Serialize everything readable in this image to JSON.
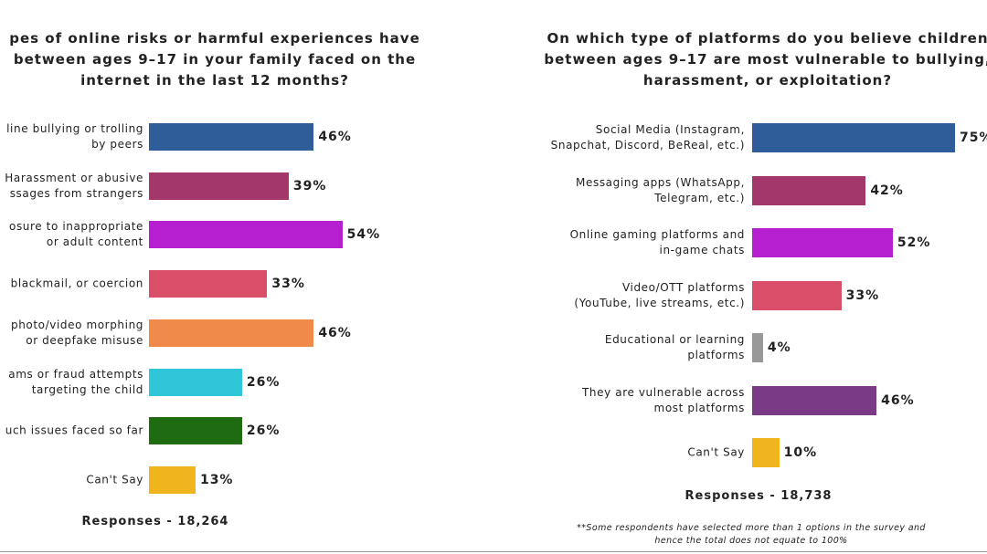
{
  "chart_data": [
    {
      "type": "bar",
      "orientation": "horizontal",
      "title": "pes of online risks or harmful experiences have\nbetween ages 9–17 in your family faced on the\ninternet in the last 12 months?",
      "categories": [
        "line bullying or trolling\nby peers",
        "Harassment or abusive\nssages from strangers",
        "osure to inappropriate\nor adult content",
        "blackmail, or coercion",
        "photo/video morphing\nor deepfake misuse",
        "ams or fraud attempts\ntargeting the child",
        "uch issues faced so far",
        "Can't Say"
      ],
      "values": [
        46,
        39,
        54,
        33,
        46,
        26,
        26,
        13
      ],
      "value_labels": [
        "46%",
        "39%",
        "54%",
        "33%",
        "46%",
        "26%",
        "26%",
        "13%"
      ],
      "colors": [
        "#2f5d9a",
        "#a3376b",
        "#b61fcf",
        "#d94f6a",
        "#f08a4b",
        "#2ec6d8",
        "#1f6b12",
        "#f0b41d"
      ],
      "footer": "Responses - 18,264"
    },
    {
      "type": "bar",
      "orientation": "horizontal",
      "title": "On which type of platforms do you believe children\nbetween ages 9–17 are most vulnerable to bullying,\nharassment, or exploitation?",
      "categories": [
        "Social Media (Instagram,\nSnapchat, Discord, BeReal, etc.)",
        "Messaging apps (WhatsApp,\nTelegram, etc.)",
        "Online gaming platforms and\nin-game chats",
        "Video/OTT platforms\n(YouTube, live streams, etc.)",
        "Educational or learning\nplatforms",
        "They are vulnerable across\nmost platforms",
        "Can't Say"
      ],
      "values": [
        75,
        42,
        52,
        33,
        4,
        46,
        10
      ],
      "value_labels": [
        "75%",
        "42%",
        "52%",
        "33%",
        "4%",
        "46%",
        "10%"
      ],
      "colors": [
        "#2f5d9a",
        "#a3376b",
        "#b61fcf",
        "#d94f6a",
        "#999999",
        "#7b3a86",
        "#f0b41d"
      ],
      "footer": "Responses - 18,738",
      "note": "**Some respondents have selected more than 1 options in the survey and\nhence the total does not equate to 100%"
    }
  ]
}
